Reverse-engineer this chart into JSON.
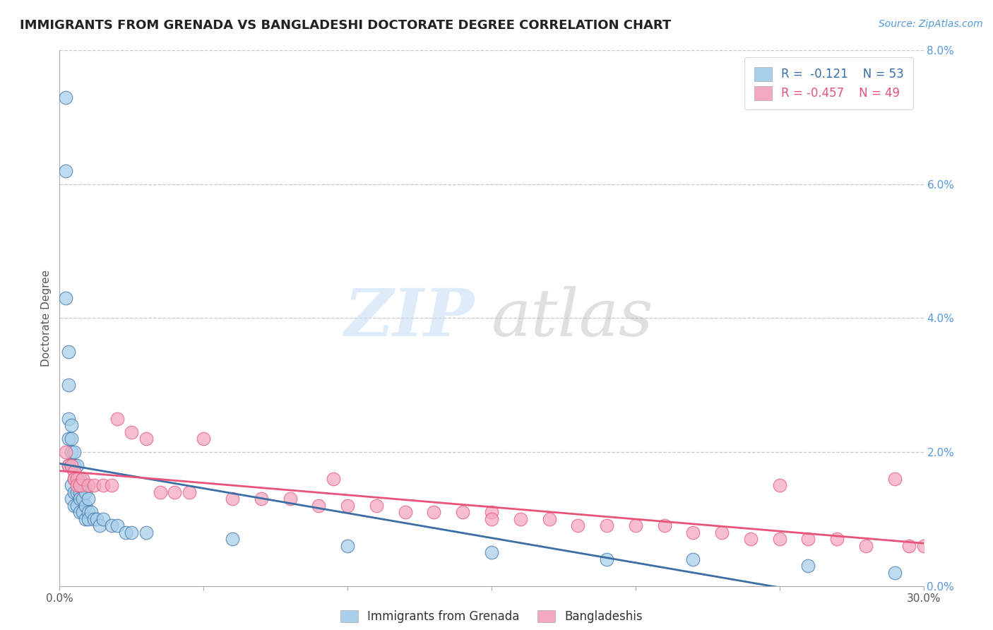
{
  "title": "IMMIGRANTS FROM GRENADA VS BANGLADESHI DOCTORATE DEGREE CORRELATION CHART",
  "source": "Source: ZipAtlas.com",
  "ylabel": "Doctorate Degree",
  "xlim": [
    0.0,
    0.3
  ],
  "ylim": [
    0.0,
    0.08
  ],
  "legend_r1": "R =  -0.121",
  "legend_n1": "N = 53",
  "legend_r2": "R = -0.457",
  "legend_n2": "N = 49",
  "color_blue": "#a8d0ea",
  "color_pink": "#f4a9be",
  "color_blue_line": "#3a6ea5",
  "color_pink_line": "#e8537a",
  "color_blue_dark": "#3a6ea5",
  "color_pink_dark": "#e8537a",
  "background_color": "#ffffff",
  "grid_color": "#c8c8c8",
  "blue_x": [
    0.002,
    0.002,
    0.002,
    0.003,
    0.003,
    0.003,
    0.003,
    0.003,
    0.004,
    0.004,
    0.004,
    0.004,
    0.004,
    0.004,
    0.005,
    0.005,
    0.005,
    0.005,
    0.005,
    0.006,
    0.006,
    0.006,
    0.006,
    0.007,
    0.007,
    0.007,
    0.007,
    0.008,
    0.008,
    0.008,
    0.009,
    0.009,
    0.009,
    0.01,
    0.01,
    0.01,
    0.011,
    0.012,
    0.013,
    0.014,
    0.015,
    0.018,
    0.02,
    0.023,
    0.025,
    0.03,
    0.06,
    0.1,
    0.15,
    0.19,
    0.22,
    0.26,
    0.29
  ],
  "blue_y": [
    0.073,
    0.062,
    0.043,
    0.035,
    0.03,
    0.025,
    0.022,
    0.018,
    0.024,
    0.022,
    0.02,
    0.018,
    0.015,
    0.013,
    0.02,
    0.018,
    0.016,
    0.014,
    0.012,
    0.018,
    0.016,
    0.014,
    0.012,
    0.016,
    0.014,
    0.013,
    0.011,
    0.015,
    0.013,
    0.011,
    0.014,
    0.012,
    0.01,
    0.013,
    0.011,
    0.01,
    0.011,
    0.01,
    0.01,
    0.009,
    0.01,
    0.009,
    0.009,
    0.008,
    0.008,
    0.008,
    0.007,
    0.006,
    0.005,
    0.004,
    0.004,
    0.003,
    0.002
  ],
  "pink_x": [
    0.002,
    0.003,
    0.004,
    0.005,
    0.005,
    0.006,
    0.006,
    0.007,
    0.008,
    0.01,
    0.012,
    0.015,
    0.018,
    0.02,
    0.025,
    0.03,
    0.035,
    0.04,
    0.045,
    0.05,
    0.06,
    0.07,
    0.08,
    0.09,
    0.095,
    0.1,
    0.11,
    0.12,
    0.13,
    0.14,
    0.15,
    0.15,
    0.16,
    0.17,
    0.18,
    0.19,
    0.2,
    0.21,
    0.22,
    0.23,
    0.24,
    0.25,
    0.26,
    0.27,
    0.28,
    0.29,
    0.295,
    0.3,
    0.25
  ],
  "pink_y": [
    0.02,
    0.018,
    0.018,
    0.017,
    0.016,
    0.016,
    0.015,
    0.015,
    0.016,
    0.015,
    0.015,
    0.015,
    0.015,
    0.025,
    0.023,
    0.022,
    0.014,
    0.014,
    0.014,
    0.022,
    0.013,
    0.013,
    0.013,
    0.012,
    0.016,
    0.012,
    0.012,
    0.011,
    0.011,
    0.011,
    0.011,
    0.01,
    0.01,
    0.01,
    0.009,
    0.009,
    0.009,
    0.009,
    0.008,
    0.008,
    0.007,
    0.007,
    0.007,
    0.007,
    0.006,
    0.016,
    0.006,
    0.006,
    0.015
  ]
}
